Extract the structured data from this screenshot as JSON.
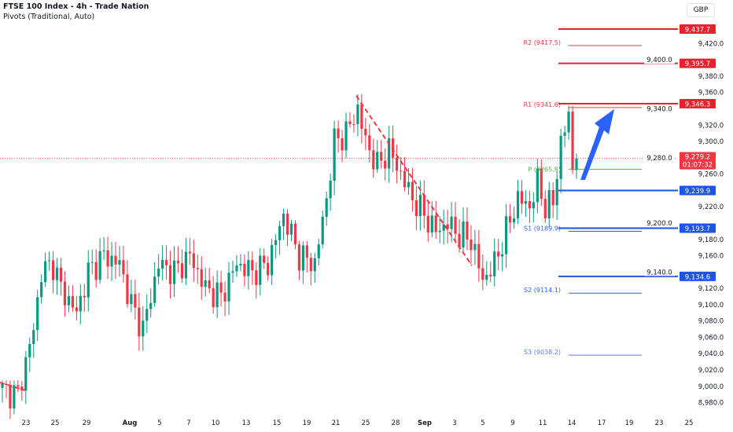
{
  "header": {
    "title": "FTSE 100 Index - 4h - Trade Nation",
    "subtitle": "Pivots (Traditional, Auto)",
    "currency": "GBP"
  },
  "chart_data": {
    "type": "candlestick",
    "title": "FTSE 100 Index - 4h - Trade Nation",
    "ylim": [
      8970,
      9445
    ],
    "y_ticks": [
      "9,420.0",
      "9,400.0",
      "9,380.0",
      "9,360.0",
      "9,340.0",
      "9,320.0",
      "9,300.0",
      "9,280.0",
      "9,260.0",
      "9,220.0",
      "9,200.0",
      "9,180.0",
      "9,160.0",
      "9,140.0",
      "9,120.0",
      "9,100.0",
      "9,080.0",
      "9,060.0",
      "9,040.0",
      "9,020.0",
      "9,000.0",
      "8,980.0"
    ],
    "y_tick_values": [
      9420,
      9400,
      9380,
      9360,
      9340,
      9320,
      9300,
      9280,
      9260,
      9220,
      9200,
      9180,
      9160,
      9140,
      9120,
      9100,
      9080,
      9060,
      9040,
      9020,
      9000,
      8980
    ],
    "x_ticks": [
      "23",
      "25",
      "29",
      "Aug",
      "5",
      "7",
      "10",
      "13",
      "15",
      "19",
      "21",
      "25",
      "28",
      "Sep",
      "3",
      "5",
      "9",
      "11",
      "14",
      "17",
      "19",
      "23",
      "25"
    ],
    "candle_count": 148,
    "close_anchors": [
      [
        0,
        8995
      ],
      [
        4,
        8990
      ],
      [
        8,
        9070
      ],
      [
        10,
        9140
      ],
      [
        13,
        9150
      ],
      [
        15,
        9120
      ],
      [
        19,
        9090
      ],
      [
        22,
        9140
      ],
      [
        26,
        9160
      ],
      [
        30,
        9150
      ],
      [
        33,
        9100
      ],
      [
        36,
        9070
      ],
      [
        40,
        9150
      ],
      [
        44,
        9140
      ],
      [
        48,
        9160
      ],
      [
        52,
        9120
      ],
      [
        56,
        9110
      ],
      [
        60,
        9150
      ],
      [
        64,
        9140
      ],
      [
        68,
        9150
      ],
      [
        72,
        9210
      ],
      [
        76,
        9160
      ],
      [
        80,
        9150
      ],
      [
        83,
        9230
      ],
      [
        85,
        9300
      ],
      [
        88,
        9310
      ],
      [
        91,
        9340
      ],
      [
        93,
        9300
      ],
      [
        96,
        9270
      ],
      [
        99,
        9290
      ],
      [
        102,
        9260
      ],
      [
        105,
        9230
      ],
      [
        108,
        9210
      ],
      [
        111,
        9190
      ],
      [
        114,
        9200
      ],
      [
        117,
        9185
      ],
      [
        120,
        9180
      ],
      [
        123,
        9130
      ],
      [
        126,
        9150
      ],
      [
        129,
        9190
      ],
      [
        132,
        9230
      ],
      [
        135,
        9220
      ],
      [
        137,
        9250
      ],
      [
        139,
        9220
      ],
      [
        141,
        9225
      ],
      [
        143,
        9300
      ],
      [
        145,
        9330
      ],
      [
        146,
        9265
      ],
      [
        147,
        9279
      ]
    ],
    "last_price": "9,279.2",
    "countdown": "01:07:32",
    "current_price_value": 9279.2,
    "pivots": [
      {
        "label": "R2 (9417.5)",
        "value": 9417.5,
        "color": "#f23645"
      },
      {
        "label": "R1 (9341.6)",
        "value": 9341.6,
        "color": "#f23645"
      },
      {
        "label": "P (9265.8)",
        "value": 9265.8,
        "color": "#4caf50"
      },
      {
        "label": "S1 (9189.9)",
        "value": 9189.9,
        "color": "#2962ff"
      },
      {
        "label": "S2 (9114.1)",
        "value": 9114.1,
        "color": "#2962ff"
      },
      {
        "label": "S3 (9038.2)",
        "value": 9038.2,
        "color": "#5b7bf0"
      }
    ],
    "resistance_levels": [
      {
        "label": "9,437.7",
        "value": 9437.7
      },
      {
        "label": "9,395.7",
        "value": 9395.7
      },
      {
        "label": "9,346.3",
        "value": 9346.3
      }
    ],
    "support_levels": [
      {
        "label": "9,239.9",
        "value": 9239.9
      },
      {
        "label": "9,193.7",
        "value": 9193.7
      },
      {
        "label": "9,134.6",
        "value": 9134.6
      }
    ],
    "colors": {
      "up": "#089981",
      "down": "#f23645",
      "resistance": "#e8212e",
      "support": "#1e53e5",
      "arrow": "#2962ff"
    }
  }
}
